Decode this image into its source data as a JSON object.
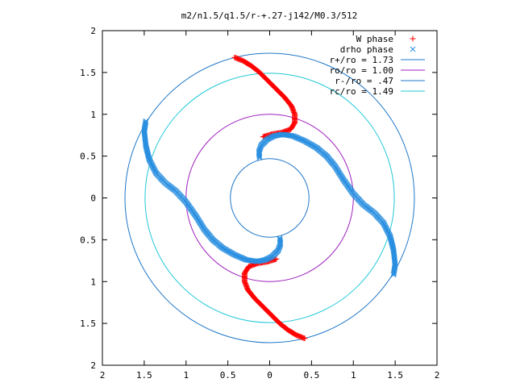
{
  "chart_data": {
    "type": "scatter",
    "title": "m2/n1.5/q1.5/r-+.27-j142/M0.3/512",
    "xlim": [
      -2,
      2
    ],
    "ylim": [
      -2,
      2
    ],
    "x_ticks": [
      -2,
      -1.5,
      -1,
      -0.5,
      0,
      0.5,
      1,
      1.5,
      2
    ],
    "y_ticks": [
      -2,
      -1.5,
      -1,
      -0.5,
      0,
      0.5,
      1,
      1.5,
      2
    ],
    "x_tick_labels": [
      "2",
      "1.5",
      "1",
      "0.5",
      "0",
      "0.5",
      "1",
      "1.5",
      "2"
    ],
    "y_tick_labels": [
      "2",
      "1.5",
      "1",
      "0.5",
      "0",
      "0.5",
      "1",
      "1.5",
      "2"
    ],
    "grid": false,
    "legend_position": "top-right",
    "series": [
      {
        "name": "W phase",
        "kind": "points",
        "marker": "plus",
        "color": "#ff0000",
        "arms": [
          [
            [
              -0.42,
              1.68
            ],
            [
              -0.32,
              1.64
            ],
            [
              -0.22,
              1.58
            ],
            [
              -0.12,
              1.5
            ],
            [
              -0.02,
              1.4
            ],
            [
              0.08,
              1.3
            ],
            [
              0.18,
              1.2
            ],
            [
              0.26,
              1.1
            ],
            [
              0.3,
              1.0
            ],
            [
              0.3,
              0.9
            ],
            [
              0.25,
              0.82
            ],
            [
              0.14,
              0.78
            ],
            [
              0.02,
              0.76
            ],
            [
              -0.08,
              0.73
            ]
          ],
          [
            [
              0.42,
              -1.68
            ],
            [
              0.32,
              -1.64
            ],
            [
              0.22,
              -1.58
            ],
            [
              0.12,
              -1.5
            ],
            [
              0.02,
              -1.4
            ],
            [
              -0.08,
              -1.3
            ],
            [
              -0.18,
              -1.2
            ],
            [
              -0.26,
              -1.1
            ],
            [
              -0.3,
              -1.0
            ],
            [
              -0.3,
              -0.9
            ],
            [
              -0.25,
              -0.82
            ],
            [
              -0.14,
              -0.78
            ],
            [
              -0.02,
              -0.76
            ],
            [
              0.08,
              -0.73
            ]
          ]
        ]
      },
      {
        "name": "drho phase",
        "kind": "points",
        "marker": "cross",
        "color": "#2a8fe0",
        "arms": [
          [
            [
              -0.12,
              0.48
            ],
            [
              -0.13,
              0.55
            ],
            [
              -0.1,
              0.63
            ],
            [
              -0.03,
              0.7
            ],
            [
              0.05,
              0.74
            ],
            [
              0.15,
              0.76
            ],
            [
              0.28,
              0.74
            ],
            [
              0.42,
              0.68
            ],
            [
              0.56,
              0.6
            ],
            [
              0.68,
              0.5
            ],
            [
              0.78,
              0.38
            ],
            [
              0.88,
              0.22
            ],
            [
              1.0,
              0.05
            ],
            [
              1.12,
              -0.08
            ],
            [
              1.25,
              -0.18
            ],
            [
              1.36,
              -0.3
            ],
            [
              1.44,
              -0.46
            ],
            [
              1.48,
              -0.62
            ],
            [
              1.5,
              -0.8
            ],
            [
              1.48,
              -0.92
            ]
          ],
          [
            [
              0.12,
              -0.48
            ],
            [
              0.13,
              -0.55
            ],
            [
              0.1,
              -0.63
            ],
            [
              0.03,
              -0.7
            ],
            [
              -0.05,
              -0.74
            ],
            [
              -0.15,
              -0.76
            ],
            [
              -0.28,
              -0.74
            ],
            [
              -0.42,
              -0.68
            ],
            [
              -0.56,
              -0.6
            ],
            [
              -0.68,
              -0.5
            ],
            [
              -0.78,
              -0.38
            ],
            [
              -0.88,
              -0.22
            ],
            [
              -1.0,
              -0.05
            ],
            [
              -1.12,
              0.08
            ],
            [
              -1.25,
              0.18
            ],
            [
              -1.36,
              0.3
            ],
            [
              -1.44,
              0.46
            ],
            [
              -1.48,
              0.62
            ],
            [
              -1.5,
              0.8
            ],
            [
              -1.48,
              0.92
            ]
          ]
        ]
      },
      {
        "name": "r+/ro = 1.73",
        "kind": "circle",
        "radius": 1.73,
        "color": "#1f77c8"
      },
      {
        "name": "ro/ro = 1.00",
        "kind": "circle",
        "radius": 1.0,
        "color": "#a020c0"
      },
      {
        "name": "r-/ro = .47",
        "kind": "circle",
        "radius": 0.47,
        "color": "#1f77c8"
      },
      {
        "name": "rc/ro = 1.49",
        "kind": "circle",
        "radius": 1.49,
        "color": "#1fc8d8"
      }
    ]
  }
}
